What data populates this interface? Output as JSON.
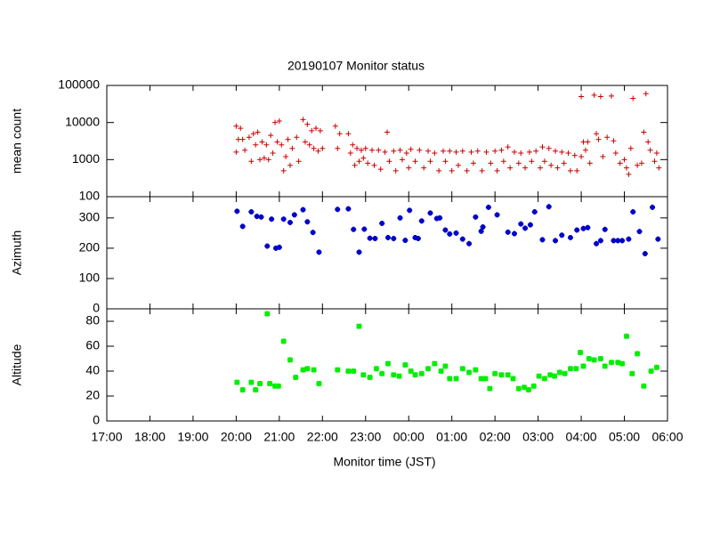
{
  "chart_data": [
    {
      "type": "scatter",
      "title": "20190107 Monitor status",
      "ylabel": "mean count",
      "log": true,
      "color": "#cc0000",
      "marker": "plus",
      "xlim": [
        17,
        30
      ],
      "ylim": [
        100,
        100000
      ],
      "yticks": [
        100,
        1000,
        10000,
        100000
      ],
      "x": [
        20.0,
        20.0,
        20.05,
        20.1,
        20.15,
        20.2,
        20.3,
        20.35,
        20.4,
        20.45,
        20.5,
        20.55,
        20.6,
        20.65,
        20.7,
        20.75,
        20.8,
        20.85,
        20.9,
        20.95,
        21.0,
        21.05,
        21.1,
        21.15,
        21.2,
        21.25,
        21.3,
        21.4,
        21.45,
        21.55,
        21.6,
        21.65,
        21.7,
        21.75,
        21.8,
        21.85,
        21.9,
        21.95,
        22.0,
        22.3,
        22.35,
        22.4,
        22.6,
        22.65,
        22.7,
        22.75,
        22.8,
        22.85,
        22.9,
        22.95,
        23.0,
        23.05,
        23.15,
        23.2,
        23.3,
        23.35,
        23.45,
        23.5,
        23.55,
        23.65,
        23.7,
        23.8,
        23.85,
        23.95,
        24.0,
        24.05,
        24.15,
        24.25,
        24.35,
        24.45,
        24.5,
        24.6,
        24.7,
        24.8,
        24.85,
        24.95,
        25.0,
        25.1,
        25.15,
        25.25,
        25.35,
        25.45,
        25.5,
        25.6,
        25.7,
        25.8,
        25.9,
        26.0,
        26.05,
        26.15,
        26.2,
        26.3,
        26.35,
        26.45,
        26.55,
        26.6,
        26.7,
        26.8,
        26.85,
        26.95,
        27.05,
        27.1,
        27.15,
        27.25,
        27.3,
        27.4,
        27.45,
        27.55,
        27.6,
        27.7,
        27.75,
        27.85,
        27.9,
        28.0,
        28.0,
        28.05,
        28.1,
        28.15,
        28.2,
        28.3,
        28.35,
        28.4,
        28.45,
        28.5,
        28.6,
        28.7,
        28.75,
        28.8,
        28.9,
        29.0,
        29.05,
        29.1,
        29.15,
        29.2,
        29.3,
        29.4,
        29.45,
        29.5,
        29.55,
        29.6,
        29.7,
        29.75,
        29.8
      ],
      "values": [
        8000,
        1600,
        3500,
        7000,
        3500,
        1800,
        4000,
        900,
        5000,
        2500,
        5500,
        1000,
        3000,
        1100,
        2500,
        1000,
        4500,
        1500,
        10000,
        3000,
        11000,
        2500,
        500,
        1200,
        3500,
        700,
        2000,
        4000,
        900,
        12000,
        3000,
        9000,
        2500,
        6000,
        2000,
        7000,
        1700,
        6000,
        2000,
        8000,
        2000,
        5000,
        5000,
        1500,
        2500,
        700,
        2000,
        900,
        1800,
        1100,
        2000,
        800,
        1800,
        700,
        1800,
        550,
        1600,
        5500,
        900,
        1700,
        500,
        1800,
        1000,
        1500,
        600,
        1900,
        900,
        1800,
        600,
        1700,
        900,
        1500,
        500,
        1700,
        900,
        1700,
        500,
        1600,
        700,
        1700,
        500,
        1600,
        800,
        1700,
        500,
        1600,
        800,
        1700,
        500,
        1800,
        900,
        2200,
        600,
        1600,
        800,
        1500,
        600,
        1600,
        900,
        1700,
        600,
        2200,
        900,
        2000,
        700,
        1700,
        600,
        1600,
        800,
        1500,
        500,
        1300,
        500,
        1200,
        50000,
        3000,
        1800,
        3000,
        800,
        55000,
        5000,
        3500,
        50000,
        1200,
        4000,
        52000,
        3200,
        1500,
        800,
        1000,
        600,
        400,
        2000,
        45000,
        700,
        800,
        5500,
        60000,
        3000,
        1800,
        900,
        1500,
        600
      ]
    },
    {
      "type": "scatter",
      "ylabel": "Azimuth",
      "color": "#0000cc",
      "marker": "box",
      "xlim": [
        17,
        30
      ],
      "ylim": [
        0,
        370
      ],
      "yticks": [
        0,
        100,
        200,
        300
      ],
      "x": [
        20.02,
        20.15,
        20.35,
        20.48,
        20.58,
        20.72,
        20.82,
        20.92,
        21.0,
        21.1,
        21.25,
        21.35,
        21.55,
        21.65,
        21.78,
        21.92,
        22.35,
        22.6,
        22.72,
        22.85,
        22.97,
        23.1,
        23.22,
        23.38,
        23.52,
        23.65,
        23.8,
        23.92,
        24.02,
        24.15,
        24.22,
        24.3,
        24.5,
        24.65,
        24.72,
        24.85,
        24.95,
        25.1,
        25.25,
        25.4,
        25.55,
        25.68,
        25.72,
        25.85,
        26.05,
        26.3,
        26.45,
        26.6,
        26.7,
        26.82,
        26.92,
        27.1,
        27.25,
        27.4,
        27.55,
        27.75,
        27.9,
        28.05,
        28.15,
        28.35,
        28.45,
        28.55,
        28.75,
        28.85,
        28.95,
        29.1,
        29.2,
        29.35,
        29.48,
        29.65,
        29.78
      ],
      "values": [
        322,
        272,
        320,
        305,
        303,
        207,
        296,
        200,
        203,
        296,
        285,
        310,
        327,
        287,
        252,
        187,
        328,
        330,
        262,
        187,
        263,
        233,
        232,
        282,
        235,
        232,
        300,
        226,
        325,
        235,
        232,
        290,
        316,
        298,
        300,
        260,
        247,
        250,
        230,
        215,
        303,
        256,
        270,
        335,
        310,
        253,
        248,
        280,
        266,
        277,
        320,
        228,
        337,
        225,
        243,
        235,
        260,
        265,
        268,
        215,
        225,
        262,
        225,
        225,
        225,
        230,
        320,
        255,
        182,
        335,
        230
      ]
    },
    {
      "type": "scatter",
      "ylabel": "Altitude",
      "xlabel": "Monitor time (JST)",
      "color": "#00ee00",
      "marker": "star",
      "xlim": [
        17,
        30
      ],
      "ylim": [
        0,
        90
      ],
      "yticks": [
        0,
        20,
        40,
        60,
        80
      ],
      "xticks": [
        {
          "value": 17,
          "label": "17:00"
        },
        {
          "value": 18,
          "label": "18:00"
        },
        {
          "value": 19,
          "label": "19:00"
        },
        {
          "value": 20,
          "label": "20:00"
        },
        {
          "value": 21,
          "label": "21:00"
        },
        {
          "value": 22,
          "label": "22:00"
        },
        {
          "value": 23,
          "label": "23:00"
        },
        {
          "value": 24,
          "label": "00:00"
        },
        {
          "value": 25,
          "label": "01:00"
        },
        {
          "value": 26,
          "label": "02:00"
        },
        {
          "value": 27,
          "label": "03:00"
        },
        {
          "value": 28,
          "label": "04:00"
        },
        {
          "value": 29,
          "label": "05:00"
        },
        {
          "value": 30,
          "label": "06:00"
        }
      ],
      "x": [
        20.02,
        20.15,
        20.35,
        20.45,
        20.55,
        20.72,
        20.78,
        20.9,
        20.98,
        21.1,
        21.25,
        21.38,
        21.55,
        21.65,
        21.8,
        21.92,
        22.35,
        22.6,
        22.72,
        22.85,
        22.95,
        23.1,
        23.25,
        23.38,
        23.52,
        23.65,
        23.78,
        23.92,
        24.05,
        24.15,
        24.3,
        24.45,
        24.6,
        24.75,
        24.85,
        24.95,
        25.1,
        25.25,
        25.4,
        25.55,
        25.68,
        25.78,
        25.88,
        26.0,
        26.15,
        26.3,
        26.42,
        26.55,
        26.68,
        26.78,
        26.9,
        27.02,
        27.15,
        27.28,
        27.38,
        27.5,
        27.62,
        27.75,
        27.88,
        27.98,
        28.05,
        28.18,
        28.3,
        28.45,
        28.55,
        28.7,
        28.85,
        28.95,
        29.05,
        29.18,
        29.3,
        29.45,
        29.62,
        29.75
      ],
      "values": [
        31,
        25,
        31,
        25,
        30,
        86,
        30,
        28,
        28,
        64,
        49,
        35,
        41,
        42,
        41,
        30,
        41,
        40,
        40,
        76,
        37,
        35,
        42,
        38,
        46,
        37,
        36,
        45,
        40,
        37,
        38,
        42,
        46,
        40,
        44,
        34,
        34,
        42,
        39,
        41,
        34,
        34,
        26,
        38,
        37,
        37,
        34,
        26,
        27,
        25,
        28,
        36,
        34,
        37,
        36,
        39,
        38,
        42,
        42,
        55,
        44,
        50,
        49,
        50,
        44,
        47,
        47,
        46,
        68,
        38,
        54,
        28,
        40,
        43
      ]
    }
  ]
}
